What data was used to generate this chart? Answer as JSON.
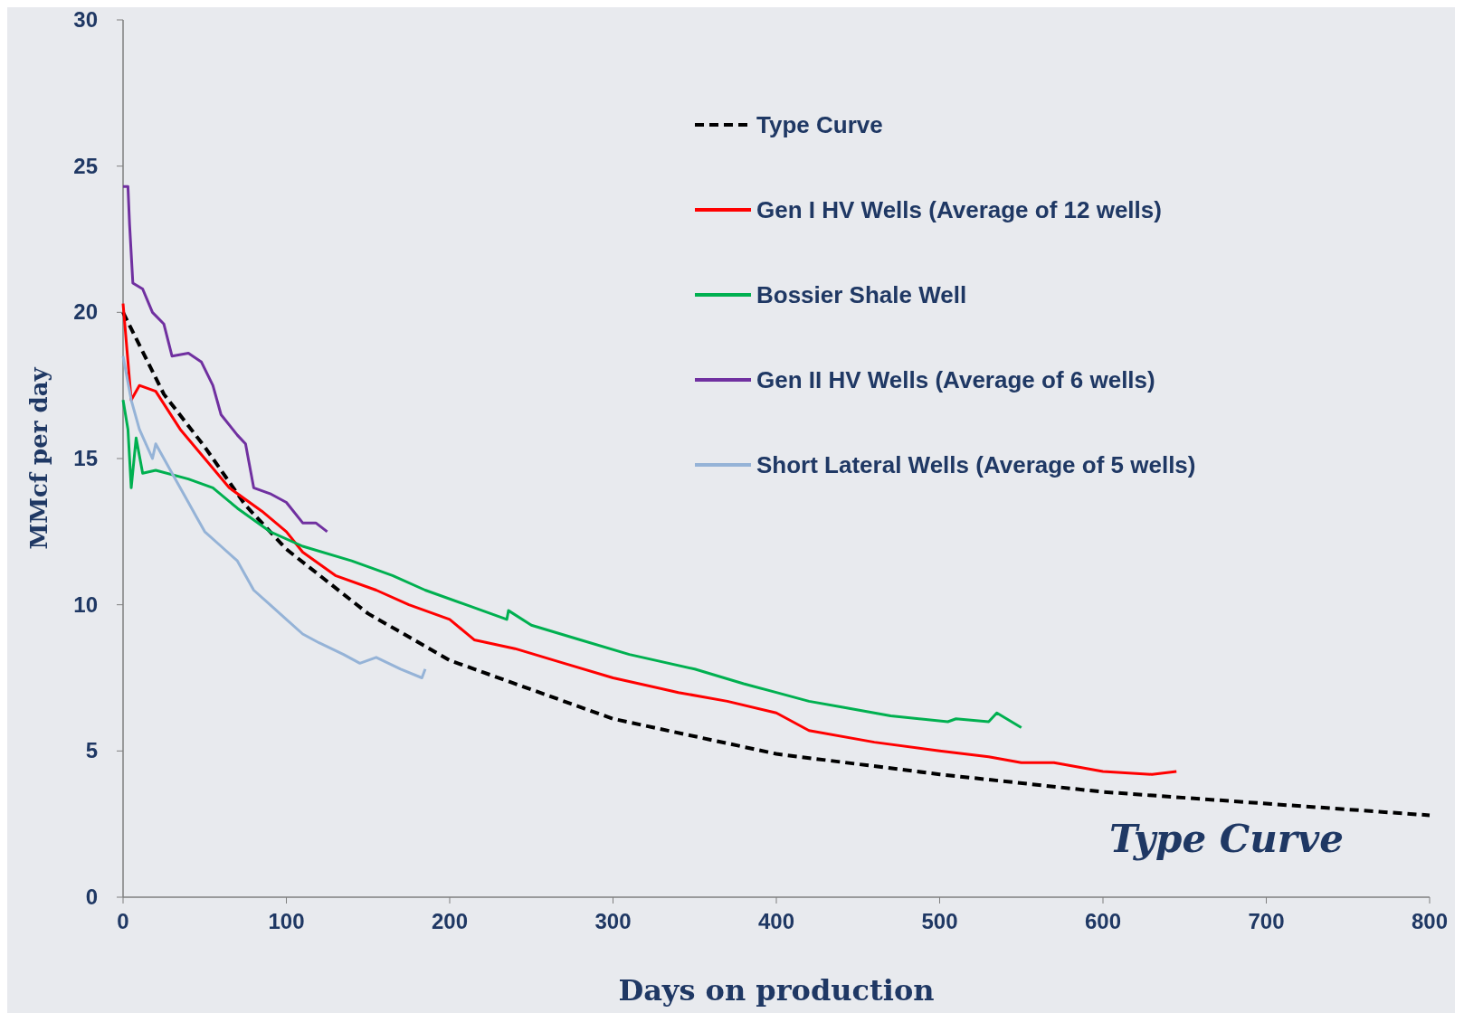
{
  "chart_data": {
    "type": "line",
    "xlabel": "Days on production",
    "ylabel": "MMcf per day",
    "xlim": [
      0,
      800
    ],
    "ylim": [
      0,
      30
    ],
    "xticks": [
      0,
      100,
      200,
      300,
      400,
      500,
      600,
      700,
      800
    ],
    "yticks": [
      0,
      5,
      10,
      15,
      20,
      25,
      30
    ],
    "grid": false,
    "legend": "top right",
    "annotations": [
      "Type Curve"
    ],
    "series": [
      {
        "name": "Type Curve",
        "color": "#000000",
        "line_style": "dashed",
        "x": [
          0,
          25,
          50,
          75,
          100,
          150,
          200,
          300,
          400,
          500,
          600,
          700,
          800
        ],
        "values": [
          20,
          17.2,
          15.4,
          13.4,
          11.9,
          9.7,
          8.1,
          6.1,
          4.9,
          4.2,
          3.6,
          3.2,
          2.8
        ]
      },
      {
        "name": "Gen I HV Wells (Average of 12 wells)",
        "color": "#ff0000",
        "x": [
          0,
          5,
          10,
          20,
          35,
          50,
          65,
          85,
          100,
          110,
          130,
          155,
          175,
          200,
          215,
          240,
          270,
          300,
          340,
          370,
          400,
          420,
          460,
          500,
          530,
          550,
          570,
          600,
          630,
          645
        ],
        "values": [
          20.3,
          17,
          17.5,
          17.3,
          16,
          15,
          14,
          13.2,
          12.5,
          11.8,
          11,
          10.5,
          10,
          9.5,
          8.8,
          8.5,
          8,
          7.5,
          7,
          6.7,
          6.3,
          5.7,
          5.3,
          5,
          4.8,
          4.6,
          4.6,
          4.3,
          4.2,
          4.3
        ]
      },
      {
        "name": "Bossier Shale Well",
        "color": "#00b050",
        "x": [
          0,
          3,
          5,
          8,
          12,
          20,
          40,
          55,
          70,
          90,
          110,
          140,
          165,
          185,
          210,
          235,
          236,
          250,
          280,
          310,
          350,
          380,
          400,
          420,
          440,
          470,
          505,
          510,
          530,
          535,
          550
        ],
        "values": [
          17,
          16,
          14,
          15.7,
          14.5,
          14.6,
          14.3,
          14,
          13.3,
          12.5,
          12,
          11.5,
          11,
          10.5,
          10,
          9.5,
          9.8,
          9.3,
          8.8,
          8.3,
          7.8,
          7.3,
          7,
          6.7,
          6.5,
          6.2,
          6,
          6.1,
          6,
          6.3,
          5.8
        ]
      },
      {
        "name": "Gen II HV Wells (Average of 6 wells)",
        "color": "#7030a0",
        "x": [
          0,
          3,
          4,
          6,
          12,
          18,
          25,
          30,
          40,
          48,
          55,
          60,
          70,
          75,
          80,
          90,
          100,
          110,
          118,
          125
        ],
        "values": [
          24.3,
          24.3,
          23,
          21,
          20.8,
          20,
          19.6,
          18.5,
          18.6,
          18.3,
          17.5,
          16.5,
          15.8,
          15.5,
          14,
          13.8,
          13.5,
          12.8,
          12.8,
          12.5
        ]
      },
      {
        "name": "Short Lateral Wells (Average of 5 wells)",
        "color": "#95b3d7",
        "x": [
          0,
          5,
          10,
          18,
          20,
          30,
          40,
          45,
          50,
          60,
          70,
          80,
          90,
          100,
          110,
          120,
          135,
          145,
          155,
          170,
          183,
          185
        ],
        "values": [
          18.5,
          17,
          16,
          15,
          15.5,
          14.5,
          13.5,
          13,
          12.5,
          12,
          11.5,
          10.5,
          10,
          9.5,
          9,
          8.7,
          8.3,
          8,
          8.2,
          7.8,
          7.5,
          7.8
        ]
      }
    ]
  }
}
